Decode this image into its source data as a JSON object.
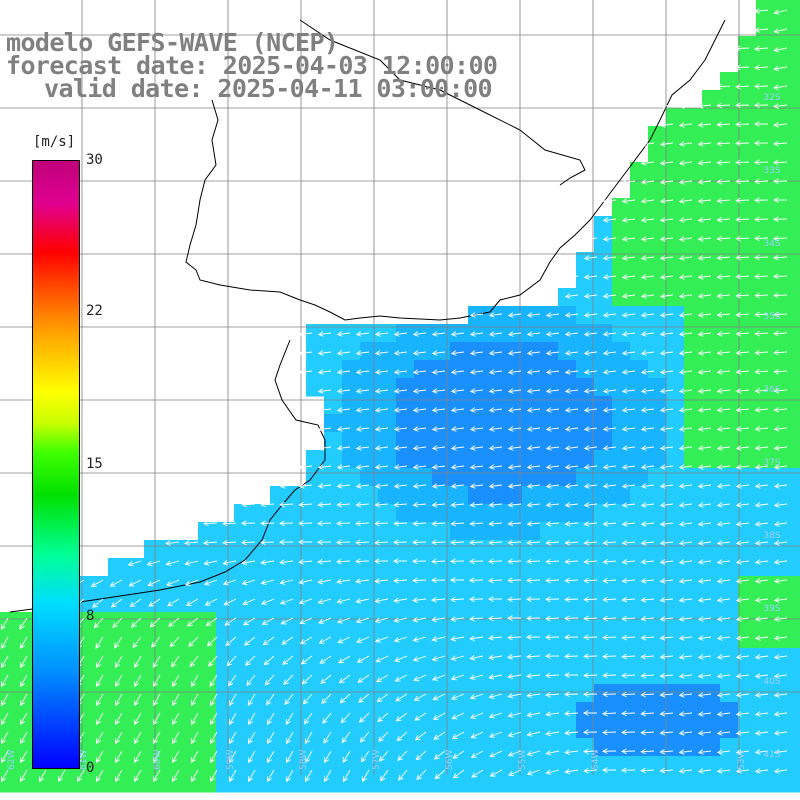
{
  "title": {
    "line1": "modelo GEFS-WAVE (NCEP)",
    "line2": "forecast date: 2025-04-03 12:00:00",
    "line3": "valid date: 2025-04-11 03:00:00"
  },
  "legend": {
    "unit": "[m/s]",
    "ticks": [
      "30",
      "22",
      "15",
      "8",
      "0"
    ],
    "colors": [
      "#0000ff",
      "#0090ff",
      "#00ddff",
      "#00ff99",
      "#00e000",
      "#ffff00",
      "#ff0000",
      "#c0007a"
    ]
  },
  "map": {
    "field": "wind speed and direction",
    "palette": {
      "sea_blue": "#1a90ff",
      "sea_cyan": "#22ccff",
      "sea_green": "#33ee55",
      "land": "#ffffff",
      "grid": "#808080",
      "coast": "#000000",
      "arrow": "#ffffff"
    },
    "lat_labels": [
      "32S",
      "33S",
      "34S",
      "35S",
      "36S",
      "37S",
      "38S",
      "39S",
      "40S",
      "41S"
    ],
    "lon_labels": [
      "62W",
      "61W",
      "60W",
      "59W",
      "58W",
      "57W",
      "56W",
      "55W",
      "54W",
      "53W"
    ]
  }
}
